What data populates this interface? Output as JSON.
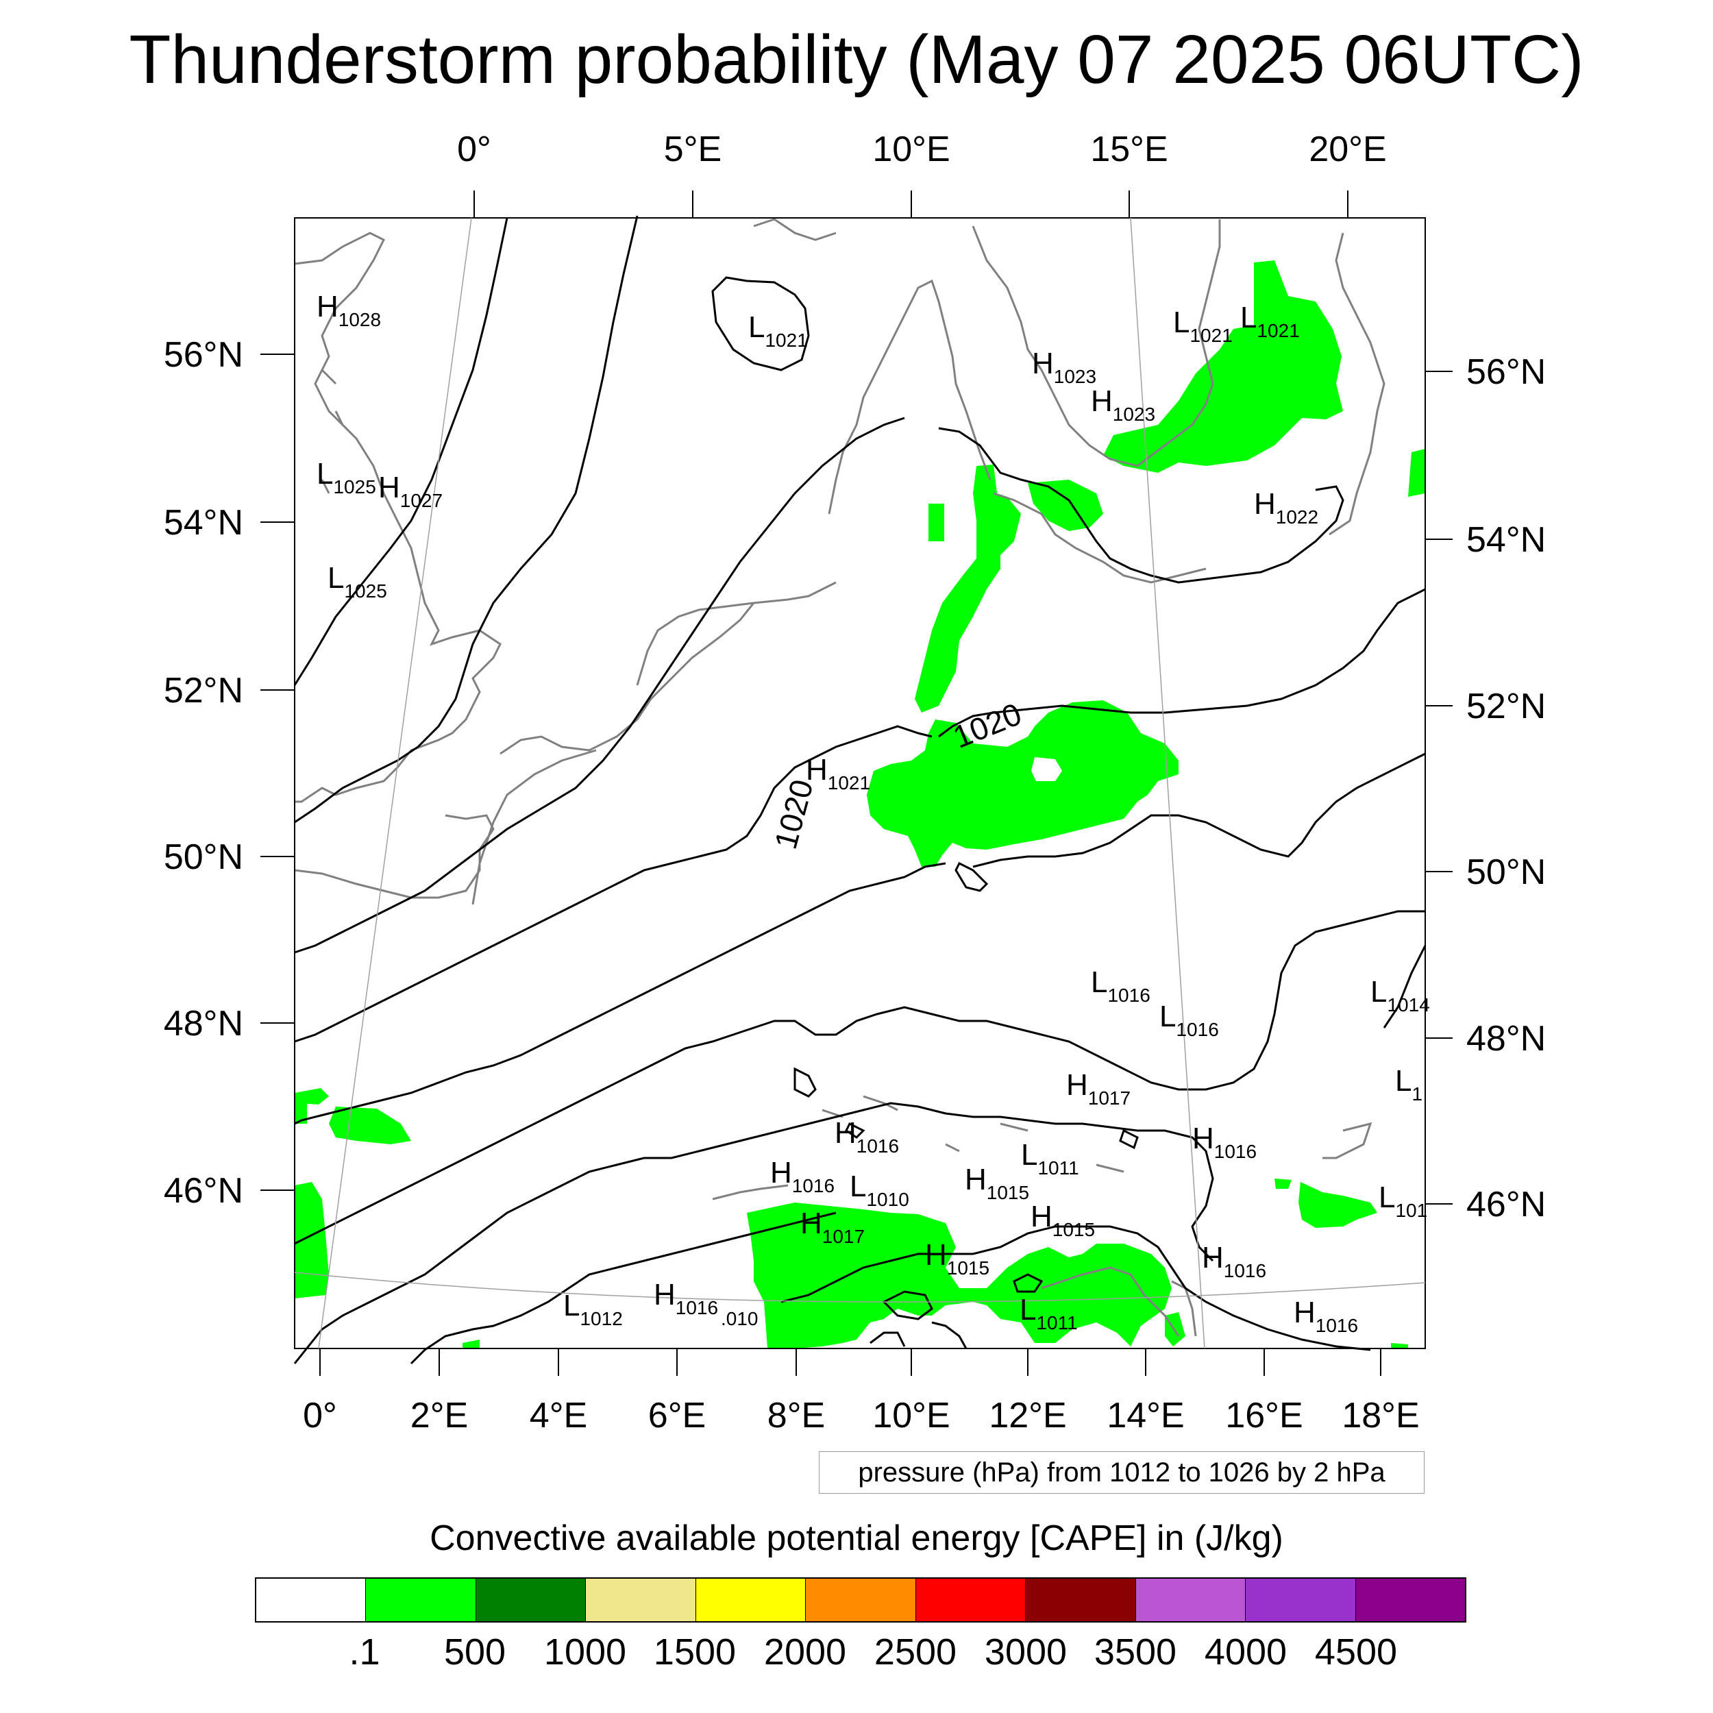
{
  "title": "Thunderstorm probability (May 07 2025 06UTC)",
  "map": {
    "top_lon_labels": [
      "0°",
      "5°E",
      "10°E",
      "15°E",
      "20°E"
    ],
    "bottom_lon_labels": [
      "0°",
      "2°E",
      "4°E",
      "6°E",
      "8°E",
      "10°E",
      "12°E",
      "14°E",
      "16°E",
      "18°E"
    ],
    "left_lat_labels": [
      "56°N",
      "54°N",
      "52°N",
      "50°N",
      "48°N",
      "46°N"
    ],
    "right_lat_labels": [
      "56°N",
      "54°N",
      "52°N",
      "50°N",
      "48°N",
      "46°N"
    ],
    "isobar_labels": [
      "1020",
      "1020"
    ],
    "pressure_centers": [
      {
        "kind": "H",
        "value": "1028"
      },
      {
        "kind": "L",
        "value": "1021"
      },
      {
        "kind": "L",
        "value": "1021"
      },
      {
        "kind": "L",
        "value": "1021"
      },
      {
        "kind": "H",
        "value": "1023"
      },
      {
        "kind": "H",
        "value": "1023"
      },
      {
        "kind": "L",
        "value": "1025"
      },
      {
        "kind": "H",
        "value": "1027"
      },
      {
        "kind": "L",
        "value": "1025"
      },
      {
        "kind": "H",
        "value": "1022"
      },
      {
        "kind": "H",
        "value": "1021"
      },
      {
        "kind": "L",
        "value": "1016"
      },
      {
        "kind": "L",
        "value": "1016"
      },
      {
        "kind": "L",
        "value": "1014"
      },
      {
        "kind": "H",
        "value": "1017"
      },
      {
        "kind": "L",
        "value": "1"
      },
      {
        "kind": "H",
        "value": "1016"
      },
      {
        "kind": "L",
        "value": "1011"
      },
      {
        "kind": "H",
        "value": "1016"
      },
      {
        "kind": "H",
        "value": "1016"
      },
      {
        "kind": "L",
        "value": "1010"
      },
      {
        "kind": "H",
        "value": "1015"
      },
      {
        "kind": "L",
        "value": "101"
      },
      {
        "kind": "H",
        "value": "1017"
      },
      {
        "kind": "H",
        "value": "1015"
      },
      {
        "kind": "H",
        "value": "1015"
      },
      {
        "kind": "H",
        "value": "1016"
      },
      {
        "kind": "L",
        "value": "1012"
      },
      {
        "kind": "H",
        "value": "1016"
      },
      {
        "kind": "",
        "value": ".010"
      },
      {
        "kind": "L",
        "value": "1011"
      },
      {
        "kind": "H",
        "value": "1016"
      }
    ],
    "colors": {
      "cape_shade": "#00ff00",
      "coastline": "#808080",
      "isobar": "#000000"
    }
  },
  "info_box": "pressure (hPa) from 1012 to 1026 by 2 hPa",
  "legend": {
    "title": "Convective available potential energy [CAPE] in (J/kg)",
    "levels": [
      ".1",
      "500",
      "1000",
      "1500",
      "2000",
      "2500",
      "3000",
      "3500",
      "4000",
      "4500"
    ],
    "colors": [
      "#ffffff",
      "#00ff00",
      "#008000",
      "#f0e68c",
      "#ffff00",
      "#ff8c00",
      "#ff0000",
      "#8b0000",
      "#ba55d3",
      "#9932cc",
      "#8b008b"
    ]
  }
}
